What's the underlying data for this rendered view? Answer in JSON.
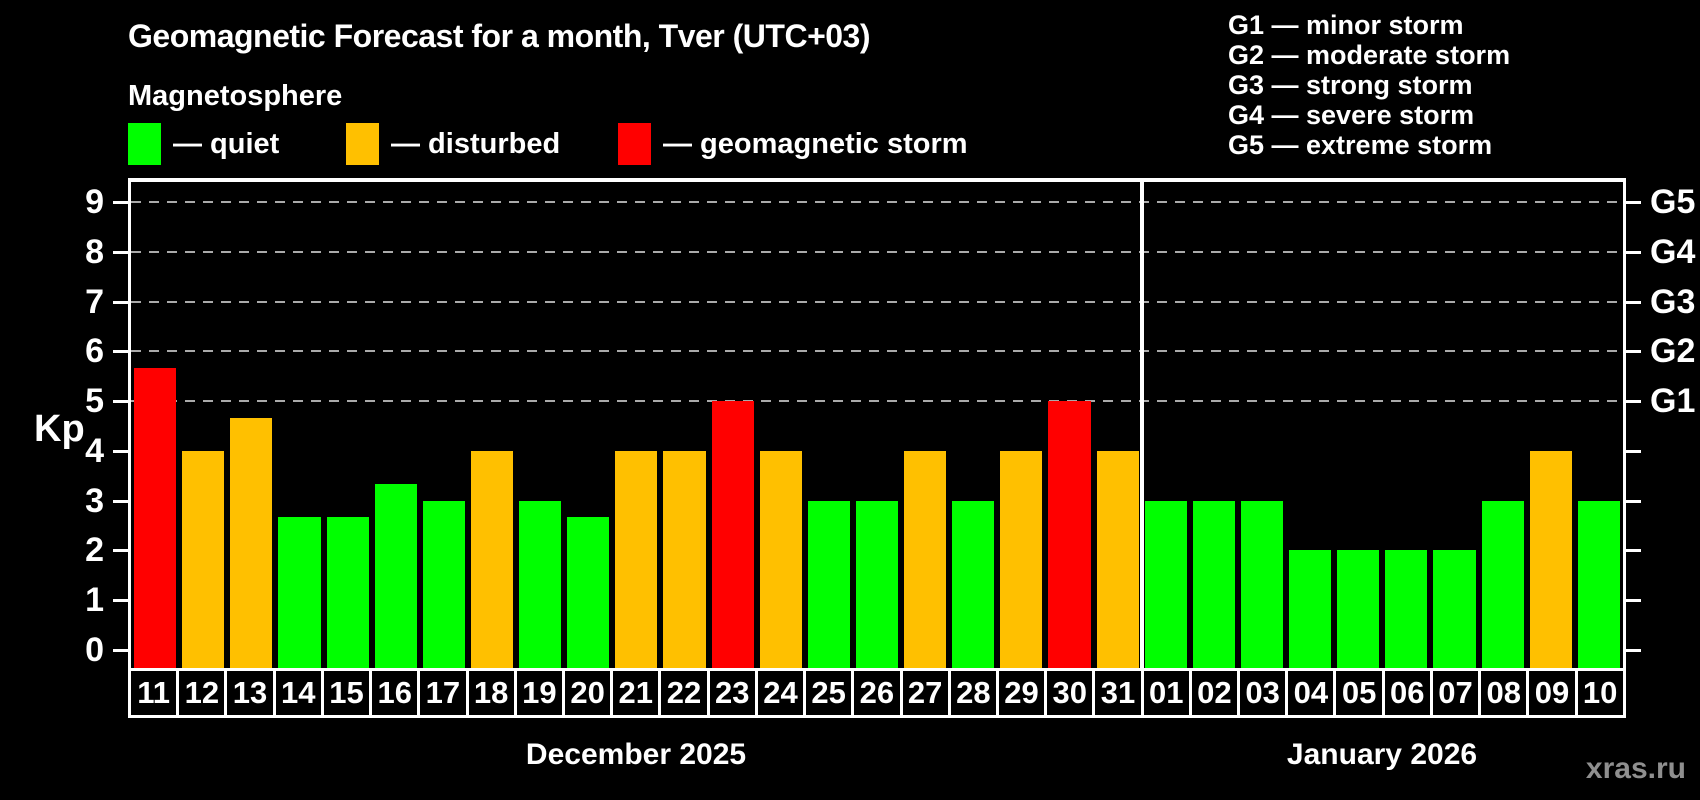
{
  "header": {
    "title": "Geomagnetic Forecast for a month, Tver (UTC+03)",
    "subtitle": "Magnetosphere"
  },
  "legend": {
    "items": [
      {
        "key": "quiet",
        "label": "— quiet",
        "color": "#00ff00"
      },
      {
        "key": "disturbed",
        "label": "— disturbed",
        "color": "#ffc000"
      },
      {
        "key": "storm",
        "label": "— geomagnetic storm",
        "color": "#ff0000"
      }
    ]
  },
  "g_legend": {
    "items": [
      "G1 — minor storm",
      "G2 — moderate storm",
      "G3 — strong storm",
      "G4 — severe storm",
      "G5 — extreme storm"
    ]
  },
  "chart_data": {
    "type": "bar",
    "title": "Geomagnetic Forecast for a month, Tver (UTC+03)",
    "subtitle": "Magnetosphere",
    "ylabel": "Kp",
    "ylim": [
      0,
      9.4
    ],
    "yticks": [
      0,
      1,
      2,
      3,
      4,
      5,
      6,
      7,
      8,
      9
    ],
    "gridlines_at": [
      5,
      6,
      7,
      8,
      9
    ],
    "grid": "dashed, horizontal, at G-storm levels only",
    "legend_position": "top",
    "right_axis_labels": [
      {
        "kp": 5,
        "label": "G1"
      },
      {
        "kp": 6,
        "label": "G2"
      },
      {
        "kp": 7,
        "label": "G3"
      },
      {
        "kp": 8,
        "label": "G4"
      },
      {
        "kp": 9,
        "label": "G5"
      }
    ],
    "months": [
      {
        "label": "December 2025",
        "days": 21
      },
      {
        "label": "January 2026",
        "days": 10
      }
    ],
    "status_colors": {
      "quiet": "#00ff00",
      "disturbed": "#ffc000",
      "storm": "#ff0000"
    },
    "bars": [
      {
        "day": "11",
        "month": "December 2025",
        "kp": 5.67,
        "status": "storm"
      },
      {
        "day": "12",
        "month": "December 2025",
        "kp": 4,
        "status": "disturbed"
      },
      {
        "day": "13",
        "month": "December 2025",
        "kp": 4.67,
        "status": "disturbed"
      },
      {
        "day": "14",
        "month": "December 2025",
        "kp": 2.67,
        "status": "quiet"
      },
      {
        "day": "15",
        "month": "December 2025",
        "kp": 2.67,
        "status": "quiet"
      },
      {
        "day": "16",
        "month": "December 2025",
        "kp": 3.33,
        "status": "quiet"
      },
      {
        "day": "17",
        "month": "December 2025",
        "kp": 3,
        "status": "quiet"
      },
      {
        "day": "18",
        "month": "December 2025",
        "kp": 4,
        "status": "disturbed"
      },
      {
        "day": "19",
        "month": "December 2025",
        "kp": 3,
        "status": "quiet"
      },
      {
        "day": "20",
        "month": "December 2025",
        "kp": 2.67,
        "status": "quiet"
      },
      {
        "day": "21",
        "month": "December 2025",
        "kp": 4,
        "status": "disturbed"
      },
      {
        "day": "22",
        "month": "December 2025",
        "kp": 4,
        "status": "disturbed"
      },
      {
        "day": "23",
        "month": "December 2025",
        "kp": 5,
        "status": "storm"
      },
      {
        "day": "24",
        "month": "December 2025",
        "kp": 4,
        "status": "disturbed"
      },
      {
        "day": "25",
        "month": "December 2025",
        "kp": 3,
        "status": "quiet"
      },
      {
        "day": "26",
        "month": "December 2025",
        "kp": 3,
        "status": "quiet"
      },
      {
        "day": "27",
        "month": "December 2025",
        "kp": 4,
        "status": "disturbed"
      },
      {
        "day": "28",
        "month": "December 2025",
        "kp": 3,
        "status": "quiet"
      },
      {
        "day": "29",
        "month": "December 2025",
        "kp": 4,
        "status": "disturbed"
      },
      {
        "day": "30",
        "month": "December 2025",
        "kp": 5,
        "status": "storm"
      },
      {
        "day": "31",
        "month": "December 2025",
        "kp": 4,
        "status": "disturbed"
      },
      {
        "day": "01",
        "month": "January 2026",
        "kp": 3,
        "status": "quiet"
      },
      {
        "day": "02",
        "month": "January 2026",
        "kp": 3,
        "status": "quiet"
      },
      {
        "day": "03",
        "month": "January 2026",
        "kp": 3,
        "status": "quiet"
      },
      {
        "day": "04",
        "month": "January 2026",
        "kp": 2,
        "status": "quiet"
      },
      {
        "day": "05",
        "month": "January 2026",
        "kp": 2,
        "status": "quiet"
      },
      {
        "day": "06",
        "month": "January 2026",
        "kp": 2,
        "status": "quiet"
      },
      {
        "day": "07",
        "month": "January 2026",
        "kp": 2,
        "status": "quiet"
      },
      {
        "day": "08",
        "month": "January 2026",
        "kp": 3,
        "status": "quiet"
      },
      {
        "day": "09",
        "month": "January 2026",
        "kp": 4,
        "status": "disturbed"
      },
      {
        "day": "10",
        "month": "January 2026",
        "kp": 3,
        "status": "quiet"
      }
    ]
  },
  "footer": {
    "watermark": "xras.ru"
  },
  "colors": {
    "background": "#000000",
    "text": "#ffffff",
    "axis": "#ffffff",
    "gridline": "#aaaaaa",
    "watermark": "#8f8f8f",
    "quiet": "#00ff00",
    "disturbed": "#ffc000",
    "storm": "#ff0000"
  }
}
